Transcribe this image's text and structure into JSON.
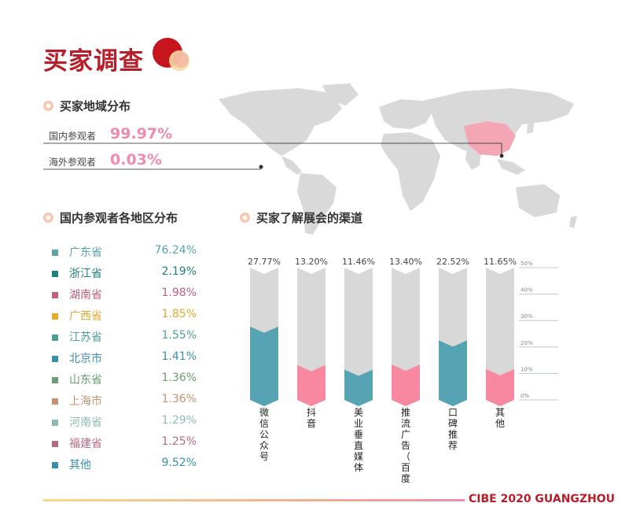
{
  "title": "买家调查",
  "sections": {
    "region_overview": "买家地域分布",
    "domestic_breakdown": "国内参观者各地区分布",
    "channels": "买家了解展会的渠道"
  },
  "visitors": [
    {
      "label": "国内参观者",
      "value": "99.97%"
    },
    {
      "label": "海外参观者",
      "value": "0.03%"
    }
  ],
  "regions": [
    {
      "name": "广东省",
      "value": "76.24%",
      "color": "#5aa3ad"
    },
    {
      "name": "浙江省",
      "value": "2.19%",
      "color": "#1f7f7a"
    },
    {
      "name": "湖南省",
      "value": "1.98%",
      "color": "#c0607a"
    },
    {
      "name": "广西省",
      "value": "1.85%",
      "color": "#e9a92c"
    },
    {
      "name": "江苏省",
      "value": "1.55%",
      "color": "#4e9e97"
    },
    {
      "name": "北京市",
      "value": "1.41%",
      "color": "#3d8eaa"
    },
    {
      "name": "山东省",
      "value": "1.36%",
      "color": "#6a9e72"
    },
    {
      "name": "上海市",
      "value": "1.36%",
      "color": "#c09473"
    },
    {
      "name": "河南省",
      "value": "1.29%",
      "color": "#8fb9b4"
    },
    {
      "name": "福建省",
      "value": "1.25%",
      "color": "#b86a80"
    },
    {
      "name": "其他",
      "value": "9.52%",
      "color": "#3a8fa8"
    }
  ],
  "chart_data": {
    "type": "bar",
    "categories": [
      "微信公众号",
      "抖音",
      "美业垂直媒体",
      "推流广告（百度、朋友圈等）",
      "口碑推荐",
      "其他"
    ],
    "values": [
      27.77,
      13.2,
      11.46,
      13.4,
      22.52,
      11.65
    ],
    "value_labels": [
      "27.77%",
      "13.20%",
      "11.46%",
      "13.40%",
      "22.52%",
      "11.65%"
    ],
    "fill_colors": [
      "#55a3b3",
      "#f7889f",
      "#55a3b3",
      "#f7889f",
      "#55a3b3",
      "#f7889f"
    ],
    "track_color": "#d8d8d8",
    "ylim": [
      0,
      50
    ],
    "ticks": [
      "0%",
      "10%",
      "20%",
      "30%",
      "40%",
      "50%"
    ],
    "grid": true
  },
  "footer": "CIBE 2020 GUANGZHOU",
  "colors": {
    "brand": "#b81d2a",
    "accent": "#f08bab"
  }
}
